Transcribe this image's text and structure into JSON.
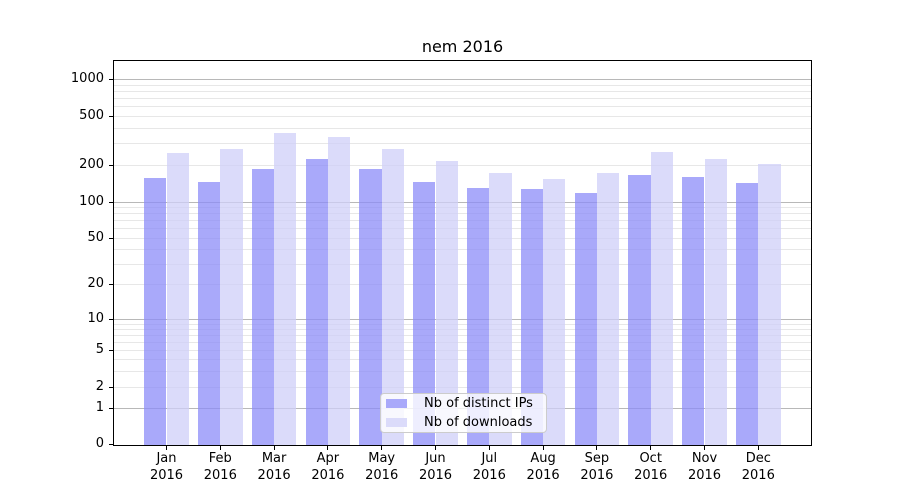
{
  "chart_data": {
    "type": "bar",
    "title": "nem 2016",
    "categories": [
      "Jan 2016",
      "Feb 2016",
      "Mar 2016",
      "Apr 2016",
      "May 2016",
      "Jun 2016",
      "Jul 2016",
      "Aug 2016",
      "Sep 2016",
      "Oct 2016",
      "Nov 2016",
      "Dec 2016"
    ],
    "series": [
      {
        "name": "Nb of distinct IPs",
        "color": "#a9a9fa",
        "values": [
          157,
          146,
          184,
          222,
          184,
          146,
          130,
          127,
          117,
          166,
          160,
          142
        ]
      },
      {
        "name": "Nb of downloads",
        "color": "#dbdbfa",
        "values": [
          249,
          271,
          364,
          338,
          271,
          217,
          173,
          154,
          171,
          255,
          224,
          203
        ]
      }
    ],
    "yscale": "symlog",
    "yticks": [
      0,
      1,
      2,
      5,
      10,
      20,
      50,
      100,
      200,
      500,
      1000
    ],
    "ylim": [
      0,
      1500
    ],
    "xlabel": "",
    "ylabel": "",
    "grid": true,
    "legend_position": "lower center",
    "grid_major_color": "#b8b8b8",
    "grid_minor_color": "#e7e7e7"
  }
}
